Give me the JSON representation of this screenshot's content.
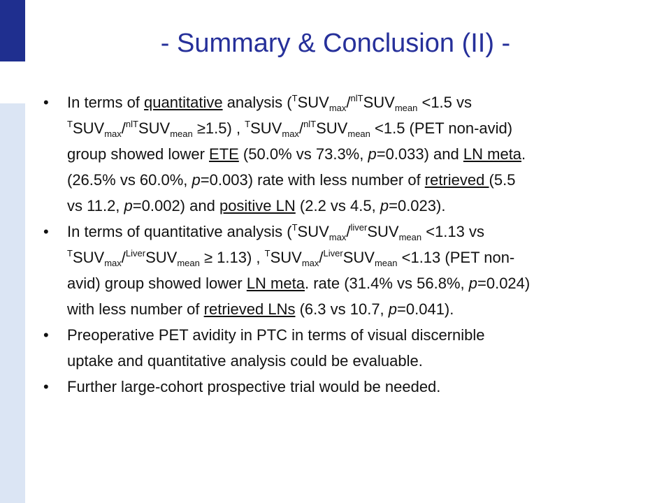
{
  "slide": {
    "title": "- Summary & Conclusion (II) -",
    "bullet_char": "•"
  },
  "b1": {
    "l1_a": "In terms of ",
    "l1_quant": "quantitative",
    "l1_b": " analysis (",
    "T": "T",
    "SUV": "SUV",
    "max": "max",
    "slash": "/",
    "nlT": "nlT",
    "mean": "mean",
    "l1_c": " <1.5 vs",
    "l2_a": " ≥1.5) , ",
    "l2_b": " <1.5 (PET non-avid)",
    "l3_a": "group showed lower ",
    "ETE": "ETE",
    "l3_b": " (50.0% vs 73.3%, ",
    "p": "p",
    "l3_c": "=0.033) and ",
    "LN_meta": "LN meta",
    "l3_d": ".",
    "l4_a": "(26.5% vs 60.0%, ",
    "l4_b": "=0.003) rate with less number of ",
    "retrieved": "retrieved ",
    "l4_c": "(5.5",
    "l5_a": "vs 11.2, ",
    "l5_b": "=0.002) and ",
    "positive_LN": "positive LN",
    "l5_c": " (2.2 vs 4.5, ",
    "l5_d": "=0.023)."
  },
  "b2": {
    "l1_a": "In terms of quantitative analysis (",
    "liver": "liver",
    "Liver": "Liver",
    "l1_b": " <1.13 vs",
    "l2_a": " ≥ 1.13) , ",
    "l2_b": " <1.13 (PET non-",
    "l3_a": "avid) group showed lower ",
    "LN_meta": "LN meta",
    "l3_b": ". rate (31.4% vs 56.8%, ",
    "l3_c": "=0.024)",
    "l4_a": "with less number of ",
    "retrieved_LNs": "retrieved LNs",
    "l4_b": " (6.3 vs 10.7, ",
    "l4_c": "=0.041)."
  },
  "b3": {
    "l1": "Preoperative PET avidity in PTC in terms of visual discernible",
    "l2": "uptake and quantitative analysis could be evaluable."
  },
  "b4": {
    "l1": "Further large-cohort prospective trial would be needed."
  }
}
